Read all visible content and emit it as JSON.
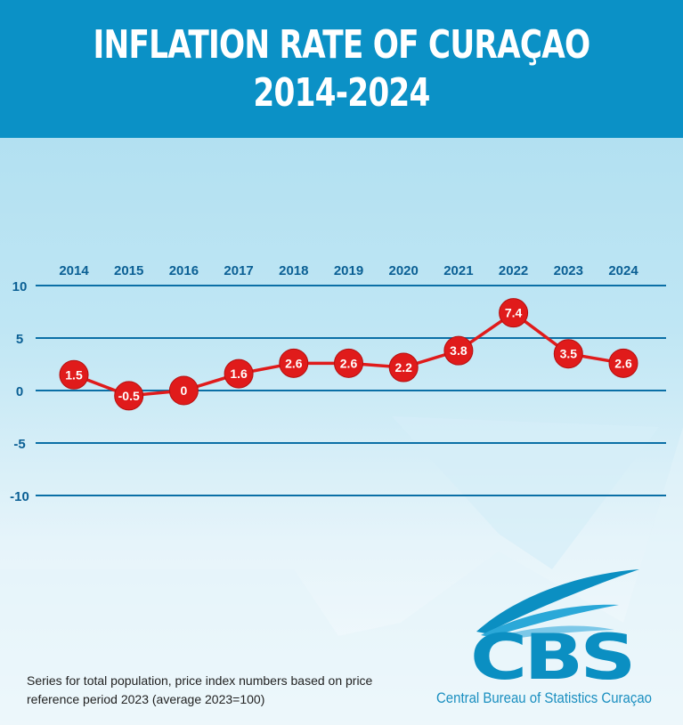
{
  "header": {
    "title_line1": "INFLATION RATE OF CURAÇAO",
    "title_line2": "2014-2024"
  },
  "chart_data": {
    "type": "line",
    "title": "INFLATION RATE OF CURAÇAO 2014-2024",
    "categories": [
      "2014",
      "2015",
      "2016",
      "2017",
      "2018",
      "2019",
      "2020",
      "2021",
      "2022",
      "2023",
      "2024"
    ],
    "values": [
      1.5,
      -0.5,
      0,
      1.6,
      2.6,
      2.6,
      2.2,
      3.8,
      7.4,
      3.5,
      2.6
    ],
    "data_labels": [
      "1.5",
      "-0.5",
      "0",
      "1.6",
      "2.6",
      "2.6",
      "2.2",
      "3.8",
      "7.4",
      "3.5",
      "2.6"
    ],
    "y_ticks": [
      "10",
      "5",
      "0",
      "-5",
      "-10"
    ],
    "y_tick_values": [
      10,
      5,
      0,
      -5,
      -10
    ],
    "ylim": [
      -10,
      10
    ],
    "x_axis_position": "top",
    "grid": true,
    "colors": {
      "line": "#e01b1b",
      "grid": "#0a6fa6",
      "tick_text": "#0a5f94"
    }
  },
  "footnote": {
    "line1": "Series for total population, price index numbers based on price",
    "line2": "reference period 2023 (average 2023=100)"
  },
  "logo": {
    "text": "CBS",
    "subtitle": "Central Bureau of Statistics Curaçao"
  }
}
